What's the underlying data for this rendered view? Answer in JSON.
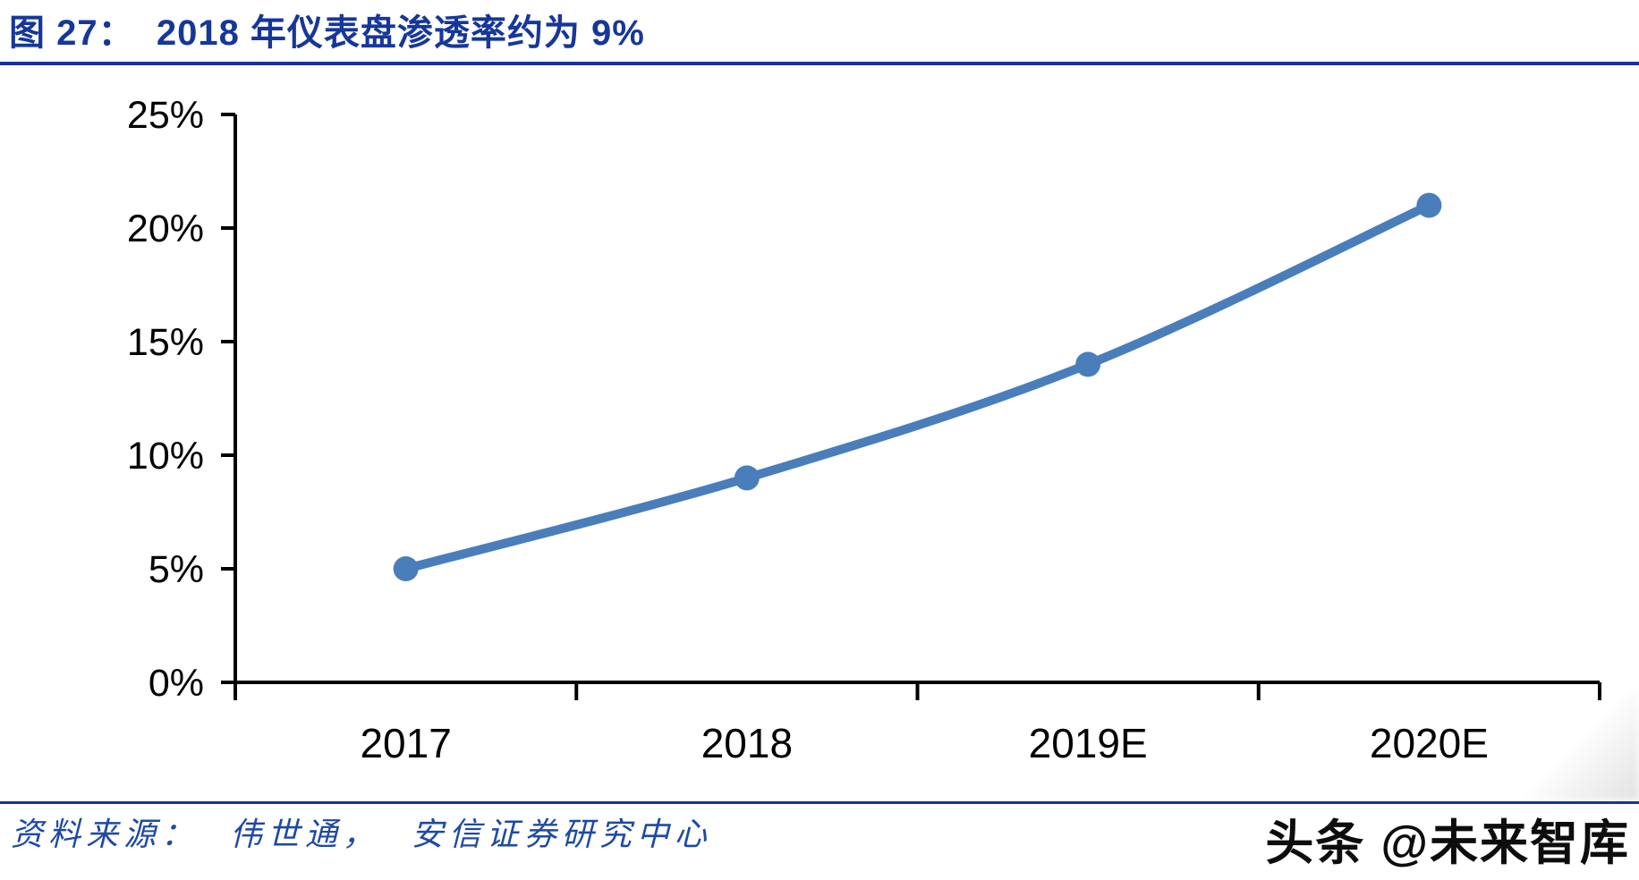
{
  "title": {
    "text": "图 27：  2018 年仪表盘渗透率约为 9%"
  },
  "source": {
    "text": "资料来源：  伟世通，  安信证券研究中心"
  },
  "watermark": {
    "text": "头条 @未来智库"
  },
  "colors": {
    "title_navy": "#16379A",
    "rule_navy": "#16339B",
    "line_blue": "#4A7EBB",
    "axis_black": "#000000",
    "source_blue": "#1E4AA2",
    "watermark_black": "#0d0d0d"
  },
  "chart_data": {
    "type": "line",
    "title": "图 27：2018 年仪表盘渗透率约为 9%",
    "categories": [
      "2017",
      "2018",
      "2019E",
      "2020E"
    ],
    "values": [
      5,
      9,
      14,
      21
    ],
    "unit": "%",
    "xlabel": "",
    "ylabel": "",
    "ylim": [
      0,
      25
    ],
    "ytick_step": 5,
    "ytick_labels": [
      "0%",
      "5%",
      "10%",
      "15%",
      "20%",
      "25%"
    ],
    "grid": false,
    "legend": false,
    "smoothed": true,
    "marker": "circle"
  }
}
